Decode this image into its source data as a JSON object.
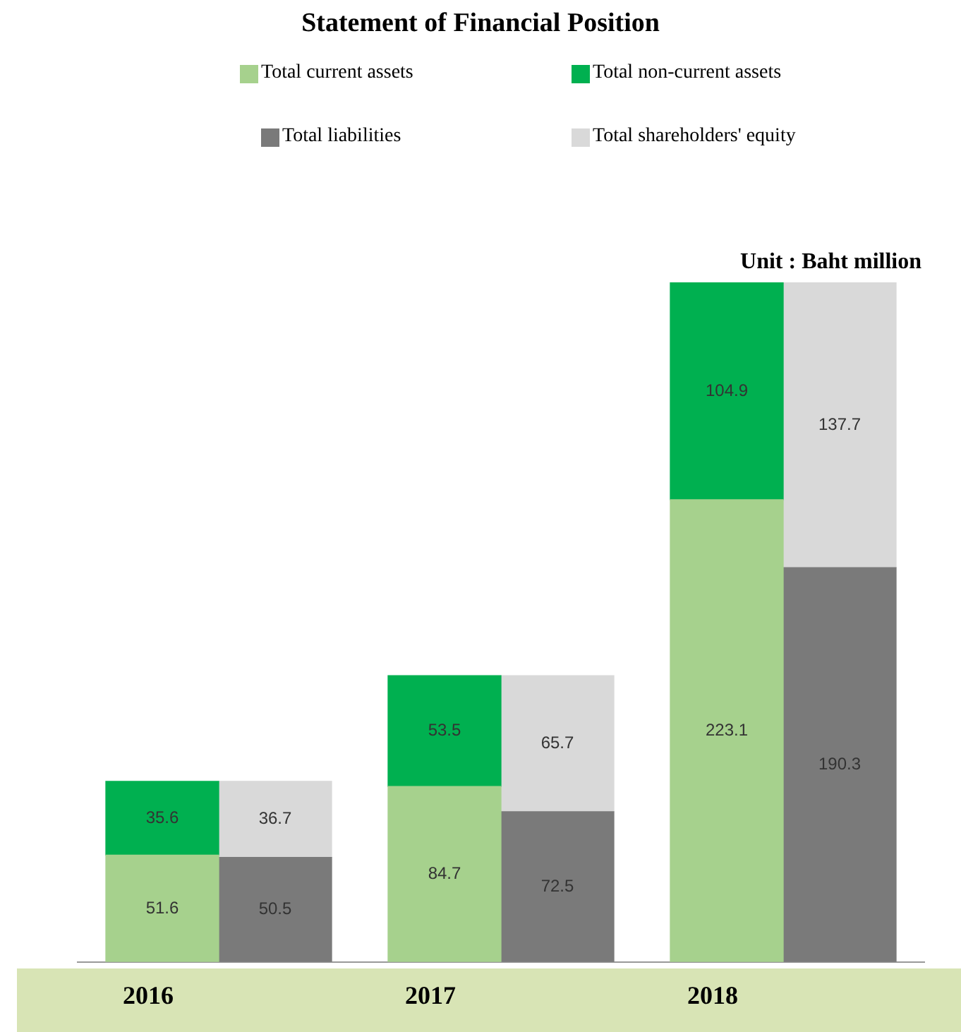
{
  "chart_data": {
    "type": "bar",
    "title": "Statement of Financial Position",
    "categories": [
      "2016",
      null,
      "2017",
      null,
      "2018",
      null
    ],
    "stacked": true,
    "data_labels": true,
    "legend": "top",
    "annotations": [
      "Unit : Baht million"
    ],
    "series": [
      {
        "name": "Total current assets",
        "color": "#a6d18d",
        "values": [
          51.6,
          null,
          84.7,
          null,
          223.1,
          null
        ]
      },
      {
        "name": "Total non-current assets",
        "color": "#00b050",
        "values": [
          35.6,
          null,
          53.5,
          null,
          104.9,
          null
        ]
      },
      {
        "name": "Total liabilities",
        "color": "#7a7a7a",
        "values": [
          null,
          50.5,
          null,
          72.5,
          null,
          190.3
        ]
      },
      {
        "name": "Total shareholders' equity",
        "color": "#d9d9d9",
        "values": [
          null,
          36.7,
          null,
          65.7,
          null,
          137.7
        ]
      }
    ]
  }
}
